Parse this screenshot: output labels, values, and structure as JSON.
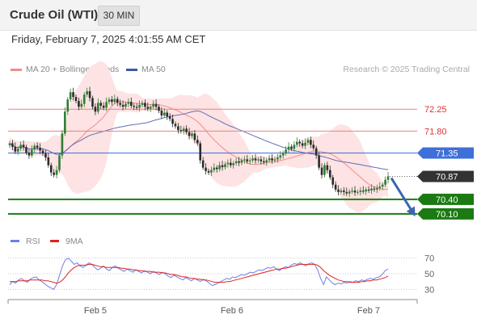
{
  "header": {
    "instrument": "Crude Oil (WTI)",
    "timeframe": "30 MIN",
    "timestamp": "Friday, February 7, 2025 4:01:55 AM CET"
  },
  "price_legend": {
    "items": [
      {
        "label": "MA 20 + Bollinger Bands",
        "color": "#f08080"
      },
      {
        "label": "MA 50",
        "color": "#3a5aa8"
      }
    ],
    "credit": "Research © 2025 Trading Central"
  },
  "rsi_legend": {
    "items": [
      {
        "label": "RSI",
        "color": "#6f7fe0"
      },
      {
        "label": "9MA",
        "color": "#dd2222"
      }
    ]
  },
  "colors": {
    "bullish_candle": "#2e7d32",
    "bearish_candle": "#2b2b2b",
    "bollinger_fill": "#fde3e3",
    "ma20": "#f28b8b",
    "ma50": "#6070b5",
    "resistance": "#f08080",
    "pivot": "#3f6fd8",
    "support": "#1b7a12",
    "current_price_tag": "#333333",
    "arrow": "#3a68b0"
  },
  "chart_data": [
    {
      "type": "candlestick",
      "title": "Crude Oil (WTI)",
      "timeframe": "30 MIN",
      "x_ticks": [
        "Feb 5",
        "Feb 6",
        "Feb 7"
      ],
      "ylim": [
        69.8,
        73.0
      ],
      "close_series": [
        71.55,
        71.48,
        71.38,
        71.44,
        71.52,
        71.47,
        71.36,
        71.3,
        71.42,
        71.5,
        71.46,
        71.4,
        71.34,
        71.26,
        71.1,
        70.95,
        70.9,
        71.0,
        71.3,
        71.75,
        72.2,
        72.45,
        72.6,
        72.5,
        72.42,
        72.3,
        72.36,
        72.55,
        72.62,
        72.48,
        72.3,
        72.2,
        72.38,
        72.32,
        72.28,
        72.4,
        72.45,
        72.4,
        72.46,
        72.38,
        72.34,
        72.3,
        72.36,
        72.4,
        72.32,
        72.3,
        72.28,
        72.34,
        72.38,
        72.3,
        72.26,
        72.3,
        72.36,
        72.3,
        72.22,
        72.12,
        72.18,
        72.1,
        72.05,
        71.95,
        71.9,
        71.82,
        71.8,
        71.85,
        71.78,
        71.7,
        71.75,
        71.62,
        71.55,
        71.2,
        71.05,
        70.98,
        70.95,
        71.0,
        71.05,
        71.02,
        71.1,
        71.06,
        71.12,
        71.15,
        71.1,
        71.14,
        71.18,
        71.15,
        71.2,
        71.22,
        71.18,
        71.2,
        71.24,
        71.2,
        71.22,
        71.18,
        71.16,
        71.2,
        71.24,
        71.2,
        71.22,
        71.26,
        71.3,
        71.35,
        71.42,
        71.48,
        71.44,
        71.52,
        71.58,
        71.55,
        71.5,
        71.56,
        71.62,
        71.52,
        71.45,
        71.3,
        71.05,
        70.9,
        71.1,
        71.0,
        70.85,
        70.7,
        70.6,
        70.55,
        70.58,
        70.55,
        70.52,
        70.56,
        70.58,
        70.54,
        70.55,
        70.58,
        70.56,
        70.6,
        70.58,
        70.62,
        70.6,
        70.63,
        70.66,
        70.7,
        70.8,
        70.87
      ],
      "indicators": [
        {
          "name": "MA 20 + Bollinger Bands",
          "color": "#f08080"
        },
        {
          "name": "MA 50",
          "color": "#3a5aa8"
        }
      ],
      "levels": [
        {
          "value": 72.25,
          "label": "72.25",
          "kind": "resistance",
          "color": "#f08080"
        },
        {
          "value": 71.8,
          "label": "71.80",
          "kind": "resistance",
          "color": "#f08080"
        },
        {
          "value": 71.35,
          "label": "71.35",
          "kind": "pivot",
          "color": "#3f6fd8"
        },
        {
          "value": 70.87,
          "label": "70.87",
          "kind": "last",
          "color": "#333333"
        },
        {
          "value": 70.4,
          "label": "70.40",
          "kind": "support",
          "color": "#1b7a12"
        },
        {
          "value": 70.1,
          "label": "70.10",
          "kind": "support",
          "color": "#1b7a12"
        }
      ]
    },
    {
      "type": "line",
      "series": [
        {
          "name": "RSI",
          "color": "#6f7fe0",
          "values": [
            36,
            40,
            38,
            42,
            44,
            41,
            39,
            43,
            45,
            46,
            42,
            40,
            37,
            34,
            32,
            30,
            36,
            48,
            60,
            68,
            70,
            66,
            62,
            64,
            60,
            58,
            61,
            64,
            62,
            58,
            55,
            57,
            60,
            56,
            54,
            58,
            60,
            57,
            55,
            53,
            56,
            54,
            52,
            55,
            53,
            51,
            54,
            52,
            50,
            53,
            51,
            49,
            52,
            50,
            47,
            45,
            48,
            46,
            44,
            42,
            45,
            43,
            41,
            44,
            42,
            40,
            43,
            41,
            38,
            35,
            36,
            38,
            40,
            42,
            44,
            43,
            46,
            45,
            47,
            49,
            48,
            50,
            52,
            51,
            53,
            55,
            54,
            56,
            58,
            57,
            59,
            56,
            54,
            57,
            59,
            58,
            61,
            63,
            62,
            64,
            62,
            60,
            63,
            64,
            62,
            55,
            44,
            36,
            46,
            42,
            38,
            36,
            38,
            37,
            39,
            38,
            40,
            39,
            41,
            40,
            42,
            41,
            43,
            44,
            43,
            45,
            46,
            49,
            54,
            56
          ]
        },
        {
          "name": "9MA",
          "color": "#dd2222",
          "values": [
            40,
            40,
            40,
            41,
            41,
            41,
            41,
            42,
            42,
            42,
            42,
            42,
            41,
            41,
            40,
            39,
            38,
            39,
            42,
            46,
            51,
            55,
            58,
            60,
            61,
            61,
            61,
            62,
            62,
            61,
            60,
            59,
            59,
            58,
            58,
            58,
            58,
            58,
            57,
            57,
            56,
            56,
            55,
            55,
            54,
            54,
            53,
            53,
            53,
            52,
            52,
            52,
            51,
            51,
            50,
            49,
            49,
            48,
            47,
            46,
            46,
            45,
            44,
            44,
            43,
            43,
            42,
            42,
            41,
            40,
            39,
            39,
            39,
            39,
            40,
            40,
            41,
            42,
            43,
            44,
            45,
            46,
            47,
            48,
            49,
            50,
            51,
            52,
            53,
            54,
            55,
            56,
            56,
            57,
            57,
            58,
            59,
            60,
            61,
            62,
            62,
            62,
            62,
            62,
            62,
            61,
            58,
            54,
            51,
            48,
            46,
            44,
            42,
            41,
            40,
            40,
            39,
            39,
            39,
            39,
            40,
            40,
            41,
            41,
            42,
            42,
            43,
            44,
            45,
            47
          ]
        }
      ],
      "y_ticks": [
        70,
        50,
        30
      ],
      "ylim": [
        20,
        80
      ]
    }
  ]
}
